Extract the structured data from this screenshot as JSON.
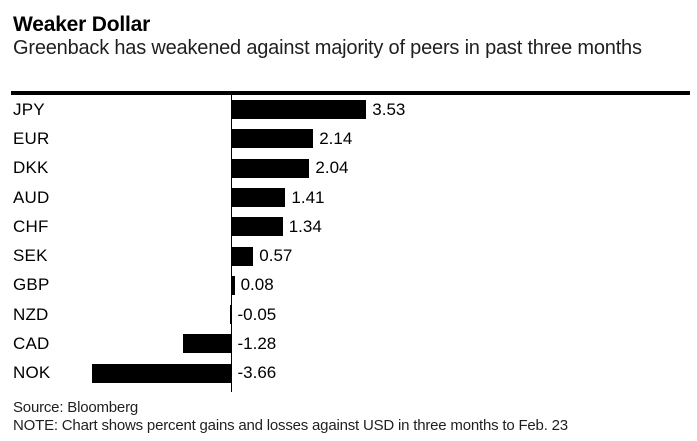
{
  "header": {
    "title": "Weaker Dollar",
    "subtitle": "Greenback has weakened against majority of peers in past three months"
  },
  "chart_data": {
    "type": "bar",
    "orientation": "horizontal",
    "title": "Weaker Dollar",
    "subtitle": "Greenback has weakened against majority of peers in past three months",
    "categories": [
      "JPY",
      "EUR",
      "DKK",
      "AUD",
      "CHF",
      "SEK",
      "GBP",
      "NZD",
      "CAD",
      "NOK"
    ],
    "values": [
      3.53,
      2.14,
      2.04,
      1.41,
      1.34,
      0.57,
      0.08,
      -0.05,
      -1.28,
      -3.66
    ],
    "value_labels": [
      "3.53",
      "2.14",
      "2.04",
      "1.41",
      "1.34",
      "0.57",
      "0.08",
      "-0.05",
      "-1.28",
      "-3.66"
    ],
    "unit": "percent gain/loss vs USD over three months to Feb. 23",
    "baseline": 0,
    "xlim": [
      -5.8,
      12.2
    ],
    "grid": false,
    "legend": false,
    "value_label_position": "end-of-bar",
    "bar_color": "#000000"
  },
  "footer": {
    "source": "Source: Bloomberg",
    "note": "NOTE: Chart shows percent gains and losses against USD in three months to Feb. 23"
  },
  "colors": {
    "background": "#ffffff",
    "bar": "#000000",
    "text": "#000000",
    "rule": "#000000"
  }
}
